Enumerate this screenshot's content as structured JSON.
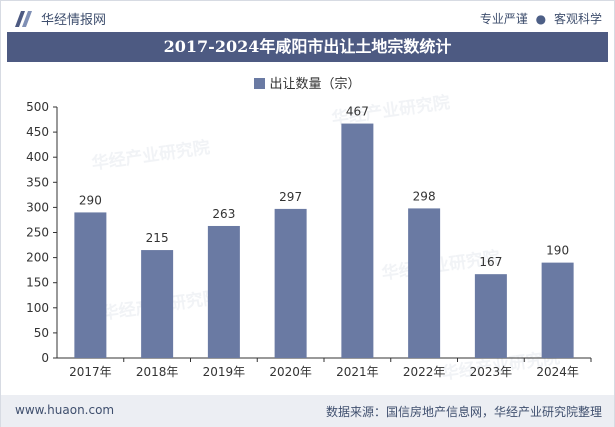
{
  "header": {
    "logo_text": "华经情报网",
    "slogan_left": "专业严谨",
    "slogan_sep": "●",
    "slogan_right": "客观科学"
  },
  "footer": {
    "site": "www.huaon.com",
    "source": "数据来源：国信房地产信息网，华经产业研究院整理"
  },
  "watermark_text": "华经产业研究院",
  "colors": {
    "bar": "#6a7aa3",
    "title_bg": "#4d5a82",
    "axis": "#333333"
  },
  "chart_data": {
    "type": "bar",
    "title": "2017-2024年咸阳市出让土地宗数统计",
    "categories": [
      "2017年",
      "2018年",
      "2019年",
      "2020年",
      "2021年",
      "2022年",
      "2023年",
      "2024年"
    ],
    "series": [
      {
        "name": "出让数量（宗）",
        "values": [
          290,
          215,
          263,
          297,
          467,
          298,
          167,
          190
        ]
      }
    ],
    "yticks": [
      0,
      50,
      100,
      150,
      200,
      250,
      300,
      350,
      400,
      450,
      500
    ],
    "ylim": [
      0,
      500
    ],
    "xlabel": "",
    "ylabel": "",
    "legend": "top-center",
    "grid": false
  }
}
